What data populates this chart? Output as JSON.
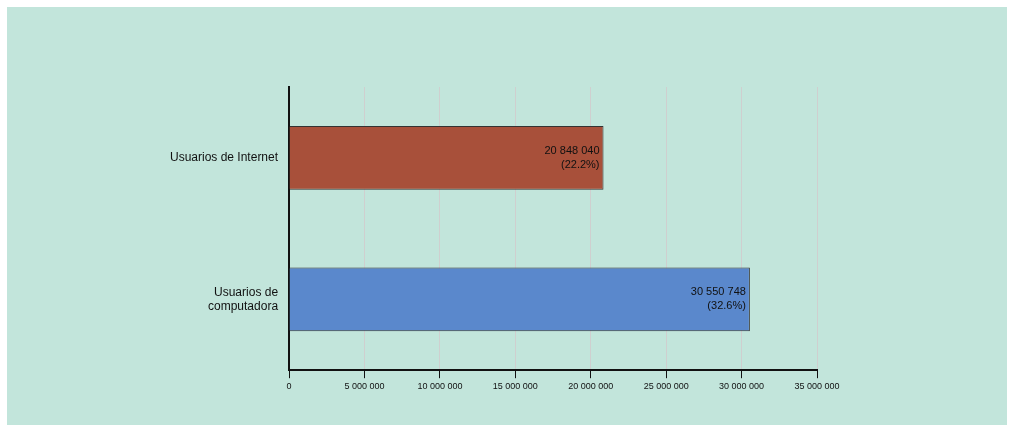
{
  "chart_data": {
    "type": "bar",
    "orientation": "horizontal",
    "categories": [
      "Usuarios de Internet",
      "Usuarios de computadora"
    ],
    "values": [
      20848040,
      30550748
    ],
    "colors": [
      "#a8503a",
      "#5a88cc"
    ],
    "value_labels": [
      "20 848 040\n(22.2%)",
      "30 550 748\n(32.6%)"
    ],
    "xlim": [
      0,
      35000000
    ],
    "xticks": [
      0,
      {
        "value": 5000000,
        "label": "5 000 000"
      },
      {
        "value": 10000000,
        "label": "10 000 000"
      },
      {
        "value": 15000000,
        "label": "15 000 000"
      },
      {
        "value": 20000000,
        "label": "20 000 000"
      },
      {
        "value": 25000000,
        "label": "25 000 000"
      },
      {
        "value": 30000000,
        "label": "30 000 000"
      },
      {
        "value": 35000000,
        "label": "35 000 000"
      }
    ],
    "grid": "x",
    "legend": false
  }
}
